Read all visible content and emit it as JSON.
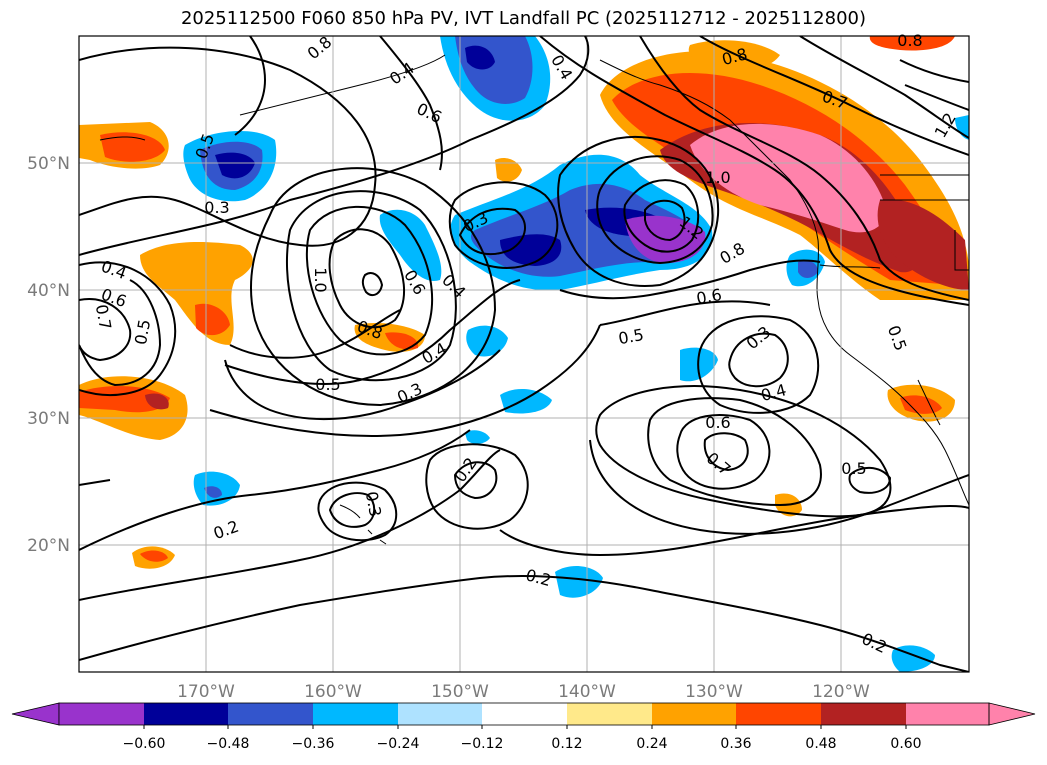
{
  "figure": {
    "title": "2025112500 F060 850 hPa PV, IVT Landfall PC (2025112712 - 2025112800)"
  },
  "map": {
    "lon_labels": [
      "170°W",
      "160°W",
      "150°W",
      "140°W",
      "130°W",
      "120°W"
    ],
    "lat_labels": [
      "50°N",
      "40°N",
      "30°N",
      "20°N"
    ],
    "contour_labels": [
      "0.8",
      "0.4",
      "0.6",
      "0.8",
      "0.7",
      "1.0",
      "1.2",
      "0.5",
      "0.3",
      "0.3",
      "0.4",
      "0.6",
      "0.7",
      "0.5",
      "1.0",
      "0.8",
      "0.6",
      "0.8",
      "0.4",
      "1.2",
      "0.4",
      "0.5",
      "0.3",
      "0.5",
      "0.6",
      "0.7",
      "0.5",
      "0.2",
      "0.2",
      "0.3",
      "0.2",
      "0.2",
      "0.8",
      "0.4",
      "0.6",
      "0.3",
      "0.5",
      "0.4"
    ]
  },
  "colorbar": {
    "ticks": [
      "−0.60",
      "−0.48",
      "−0.36",
      "−0.24",
      "−0.12",
      "0.12",
      "0.24",
      "0.36",
      "0.48",
      "0.60"
    ],
    "colors": [
      "#9933cc",
      "#000099",
      "#3355cc",
      "#00b8ff",
      "#aee2ff",
      "#ffffff",
      "#ffe98a",
      "#ffa200",
      "#ff4500",
      "#b22222",
      "#ff82ab"
    ]
  },
  "colors": {
    "neg_purple": "#9933cc",
    "neg_navy": "#000099",
    "neg_blue": "#3355cc",
    "neg_cyan": "#00b8ff",
    "pos_orange": "#ffa200",
    "pos_redorange": "#ff4500",
    "pos_firebrick": "#b22222",
    "pos_pink": "#ff82ab"
  }
}
